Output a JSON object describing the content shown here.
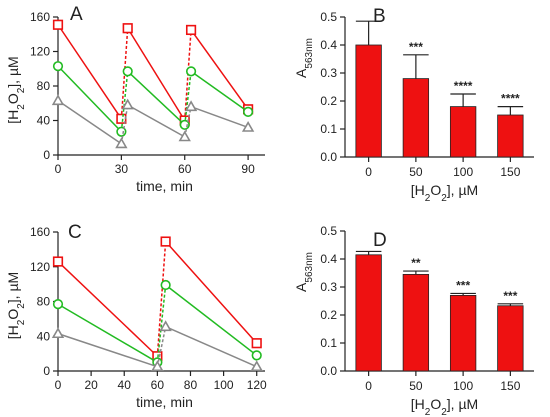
{
  "chart_data": [
    {
      "panel": "A",
      "type": "line",
      "xlabel": "time, min",
      "ylabel": {
        "main": "[H",
        "sub": "2",
        "main2": "O",
        "sub2": "2",
        "tail": "], µM"
      },
      "xticks": [
        "0",
        "30",
        "60",
        "90"
      ],
      "yticks": [
        "0",
        "40",
        "80",
        "120",
        "160"
      ],
      "xlim": [
        0,
        98
      ],
      "ylim": [
        0,
        160
      ],
      "series": [
        {
          "marker": "square",
          "color": "#ee1111",
          "segments": [
            [
              [
                0,
                151
              ],
              [
                30,
                42
              ]
            ],
            [
              [
                33,
                147
              ],
              [
                60,
                40
              ]
            ],
            [
              [
                63,
                145
              ],
              [
                90,
                53
              ]
            ]
          ],
          "jumps": [
            [
              [
                30,
                42
              ],
              [
                33,
                147
              ]
            ],
            [
              [
                60,
                40
              ],
              [
                63,
                145
              ]
            ]
          ]
        },
        {
          "marker": "circle",
          "color": "#22bb22",
          "segments": [
            [
              [
                0,
                103
              ],
              [
                30,
                27
              ]
            ],
            [
              [
                33,
                97
              ],
              [
                60,
                35
              ]
            ],
            [
              [
                63,
                97
              ],
              [
                90,
                50
              ]
            ]
          ],
          "jumps": [
            [
              [
                30,
                27
              ],
              [
                33,
                97
              ]
            ],
            [
              [
                60,
                35
              ],
              [
                63,
                97
              ]
            ]
          ]
        },
        {
          "marker": "triangle",
          "color": "#888888",
          "segments": [
            [
              [
                0,
                63
              ],
              [
                30,
                13
              ]
            ],
            [
              [
                33,
                58
              ],
              [
                60,
                21
              ]
            ],
            [
              [
                63,
                56
              ],
              [
                90,
                32
              ]
            ]
          ],
          "jumps": [
            [
              [
                30,
                13
              ],
              [
                33,
                58
              ]
            ],
            [
              [
                60,
                21
              ],
              [
                63,
                56
              ]
            ]
          ]
        }
      ]
    },
    {
      "panel": "B",
      "type": "bar",
      "xlabel": {
        "main": "[H",
        "sub": "2",
        "main2": "O",
        "sub2": "2",
        "tail": "], µM"
      },
      "ylabel": {
        "main": "A",
        "sub": "563nm"
      },
      "categories": [
        "0",
        "50",
        "100",
        "150"
      ],
      "values": [
        0.4,
        0.28,
        0.18,
        0.15
      ],
      "errors": [
        0.085,
        0.085,
        0.045,
        0.03
      ],
      "significance": [
        "",
        "***",
        "****",
        "****"
      ],
      "yticks": [
        "0.0",
        "0.1",
        "0.2",
        "0.3",
        "0.4",
        "0.5"
      ],
      "ylim": [
        0,
        0.5
      ],
      "color": "#ee1111"
    },
    {
      "panel": "C",
      "type": "line",
      "xlabel": "time, min",
      "ylabel": {
        "main": "[H",
        "sub": "2",
        "main2": "O",
        "sub2": "2",
        "tail": "], µM"
      },
      "xticks": [
        "0",
        "20",
        "40",
        "60",
        "80",
        "100",
        "120"
      ],
      "yticks": [
        "0",
        "40",
        "80",
        "120",
        "160"
      ],
      "xlim": [
        0,
        125
      ],
      "ylim": [
        0,
        160
      ],
      "series": [
        {
          "marker": "square",
          "color": "#ee1111",
          "segments": [
            [
              [
                0,
                126
              ],
              [
                60,
                17
              ]
            ],
            [
              [
                65,
                149
              ],
              [
                120,
                32
              ]
            ]
          ],
          "jumps": [
            [
              [
                60,
                17
              ],
              [
                65,
                149
              ]
            ]
          ]
        },
        {
          "marker": "circle",
          "color": "#22bb22",
          "segments": [
            [
              [
                0,
                77
              ],
              [
                60,
                10
              ]
            ],
            [
              [
                65,
                99
              ],
              [
                120,
                18
              ]
            ]
          ],
          "jumps": [
            [
              [
                60,
                10
              ],
              [
                65,
                99
              ]
            ]
          ]
        },
        {
          "marker": "triangle",
          "color": "#888888",
          "segments": [
            [
              [
                0,
                43
              ],
              [
                60,
                5
              ]
            ],
            [
              [
                65,
                51
              ],
              [
                120,
                5
              ]
            ]
          ],
          "jumps": [
            [
              [
                60,
                5
              ],
              [
                65,
                51
              ]
            ]
          ]
        }
      ]
    },
    {
      "panel": "D",
      "type": "bar",
      "xlabel": {
        "main": "[H",
        "sub": "2",
        "main2": "O",
        "sub2": "2",
        "tail": "], µM"
      },
      "ylabel": {
        "main": "A",
        "sub": "563nm"
      },
      "categories": [
        "0",
        "50",
        "100",
        "150"
      ],
      "values": [
        0.415,
        0.345,
        0.27,
        0.233
      ],
      "errors": [
        0.012,
        0.012,
        0.007,
        0.007
      ],
      "significance": [
        "",
        "**",
        "***",
        "***"
      ],
      "yticks": [
        "0.0",
        "0.1",
        "0.2",
        "0.3",
        "0.4",
        "0.5"
      ],
      "ylim": [
        0,
        0.5
      ],
      "color": "#ee1111"
    }
  ]
}
